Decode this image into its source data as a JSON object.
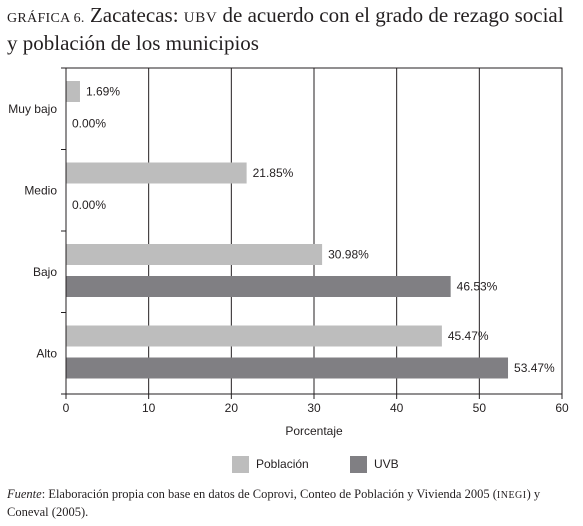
{
  "title": {
    "label": "GRÁFICA 6.",
    "text_before": "Zacatecas:",
    "abbr": "UBV",
    "text_after": "de acuerdo con el grado de rezago social",
    "line2": "y población de los municipios"
  },
  "chart_data": {
    "type": "bar",
    "orientation": "horizontal",
    "categories": [
      "Muy bajo",
      "Medio",
      "Bajo",
      "Alto"
    ],
    "series": [
      {
        "name": "Población",
        "values": [
          1.69,
          21.85,
          30.98,
          45.47
        ],
        "labels": [
          "1.69%",
          "21.85%",
          "30.98%",
          "45.47%"
        ],
        "color": "#bdbdbd"
      },
      {
        "name": "UVB",
        "values": [
          0.0,
          0.0,
          46.53,
          53.47
        ],
        "labels": [
          "0.00%",
          "0.00%",
          "46.53%",
          "53.47%"
        ],
        "color": "#807f83"
      }
    ],
    "x_ticks": [
      "0",
      "10",
      "20",
      "30",
      "40",
      "50",
      "60"
    ],
    "xlim": [
      0,
      60
    ],
    "xlabel": "Porcentaje",
    "grid": "vertical",
    "legend_position": "bottom"
  },
  "source": {
    "label": "Fuente",
    "text": ": Elaboración propia con base en datos de Coprovi, Conteo de Población y Vivienda 2005 (",
    "abbr": "INEGI",
    "text_end": ") y Coneval (2005)."
  }
}
